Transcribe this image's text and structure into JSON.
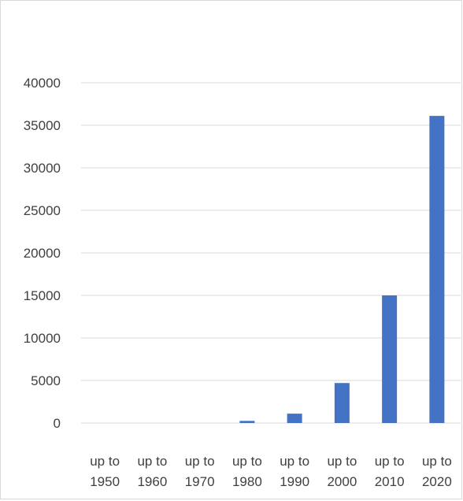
{
  "chart_data": {
    "type": "bar",
    "categories": [
      [
        "up to",
        "1950"
      ],
      [
        "up to",
        "1960"
      ],
      [
        "up to",
        "1970"
      ],
      [
        "up to",
        "1980"
      ],
      [
        "up to",
        "1990"
      ],
      [
        "up to",
        "2000"
      ],
      [
        "up to",
        "2010"
      ],
      [
        "up to",
        "2020"
      ]
    ],
    "values": [
      5,
      10,
      20,
      250,
      1100,
      4700,
      15000,
      36100
    ],
    "ylim": [
      0,
      40000
    ],
    "yticks": [
      "0",
      "5000",
      "10000",
      "15000",
      "20000",
      "25000",
      "30000",
      "35000",
      "40000"
    ],
    "grid": true,
    "bar_color": "#4472c4",
    "grid_color": "#d9d9d9",
    "title": "",
    "xlabel": "",
    "ylabel": ""
  }
}
